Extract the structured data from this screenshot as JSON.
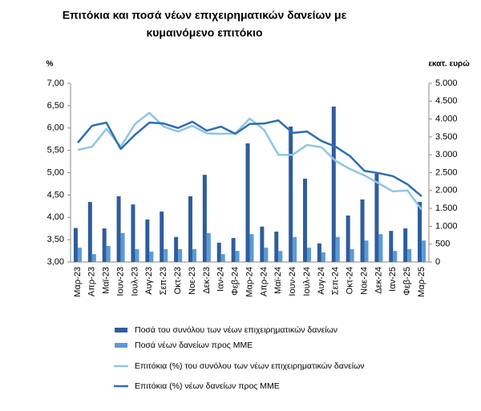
{
  "chart_data": {
    "type": "combo",
    "title": [
      "Επιτόκια και ποσά νέων επιχειρηματικών δανείων με",
      "κυμαινόμενο επιτόκιο"
    ],
    "y_label": "%",
    "y2_label": "εκατ. ευρώ",
    "categories": [
      "Μαρ-23",
      "Απρ-23",
      "Μαϊ-23",
      "Ιουν-23",
      "Ιουλ-23",
      "Αυγ-23",
      "Σεπ-23",
      "Οκτ-23",
      "Νοε-23",
      "Δεκ-23",
      "Ιαν-24",
      "Φεβ-24",
      "Μαρ-24",
      "Απρ-24",
      "Μαϊ-24",
      "Ιουν-24",
      "Ιουλ-24",
      "Αυγ-24",
      "Σεπ-24",
      "Οκτ-24",
      "Νοε-24",
      "Δεκ-24",
      "Ιαν-25",
      "Φεβ-25",
      "Μαρ-25"
    ],
    "series": [
      {
        "name": "Ποσά του συνόλου των νέων επιχειρηματικών δανείων",
        "type": "bar",
        "axis": "y2",
        "color": "#2f5d9b",
        "values": [
          950,
          1680,
          940,
          1840,
          1610,
          1190,
          1410,
          700,
          1840,
          2440,
          540,
          670,
          3320,
          990,
          850,
          3790,
          2330,
          520,
          4350,
          1300,
          1750,
          2470,
          870,
          940,
          1680
        ]
      },
      {
        "name": "Ποσά νέων δανείων προς ΜΜΕ",
        "type": "bar",
        "axis": "y2",
        "color": "#5b9bd5",
        "values": [
          400,
          220,
          450,
          810,
          360,
          290,
          360,
          360,
          360,
          810,
          220,
          310,
          780,
          400,
          310,
          700,
          400,
          270,
          700,
          360,
          600,
          780,
          310,
          360,
          600
        ]
      },
      {
        "name": "Επιτόκια (%) του συνόλου των νέων επιχειρηματικών δανείων",
        "type": "line",
        "color": "#8ec5e4",
        "values": [
          5.51,
          5.58,
          5.98,
          5.58,
          6.09,
          6.34,
          6.03,
          5.92,
          6.05,
          5.88,
          5.87,
          5.88,
          6.21,
          5.96,
          5.4,
          5.4,
          5.62,
          5.57,
          5.26,
          5.08,
          4.94,
          4.76,
          4.58,
          4.6,
          4.17
        ]
      },
      {
        "name": "Επιτόκια (%) νέων δανείων προς ΜΜΕ",
        "type": "line",
        "color": "#2e6db4",
        "values": [
          5.67,
          6.05,
          6.12,
          5.53,
          5.85,
          6.12,
          6.1,
          6.0,
          6.14,
          5.94,
          6.03,
          5.87,
          6.09,
          6.1,
          6.17,
          5.89,
          5.92,
          5.71,
          5.58,
          5.37,
          5.04,
          4.99,
          4.92,
          4.74,
          4.47
        ]
      }
    ],
    "ylim": [
      3,
      7
    ],
    "yticks": [
      {
        "value": 3,
        "label": "3,00"
      },
      {
        "value": 3.5,
        "label": "3,50"
      },
      {
        "value": 4,
        "label": "4,00"
      },
      {
        "value": 4.5,
        "label": "4,50"
      },
      {
        "value": 5,
        "label": "5,00"
      },
      {
        "value": 5.5,
        "label": "5,50"
      },
      {
        "value": 6,
        "label": "6,00"
      },
      {
        "value": 6.5,
        "label": "6,50"
      },
      {
        "value": 7,
        "label": "7,00"
      }
    ],
    "y2lim": [
      0,
      5000
    ],
    "y2ticks": [
      0,
      500,
      {
        "value": 1000,
        "label": "1.000"
      },
      {
        "value": 1500,
        "label": "1.500"
      },
      {
        "value": 2000,
        "label": "2.000"
      },
      {
        "value": 2500,
        "label": "2.500"
      },
      {
        "value": 3000,
        "label": "3.000"
      },
      {
        "value": 3500,
        "label": "3.500"
      },
      {
        "value": 4000,
        "label": "4.000"
      },
      {
        "value": 4500,
        "label": "4.500"
      },
      {
        "value": 5000,
        "label": "5.000"
      }
    ],
    "legend": "bottom"
  }
}
